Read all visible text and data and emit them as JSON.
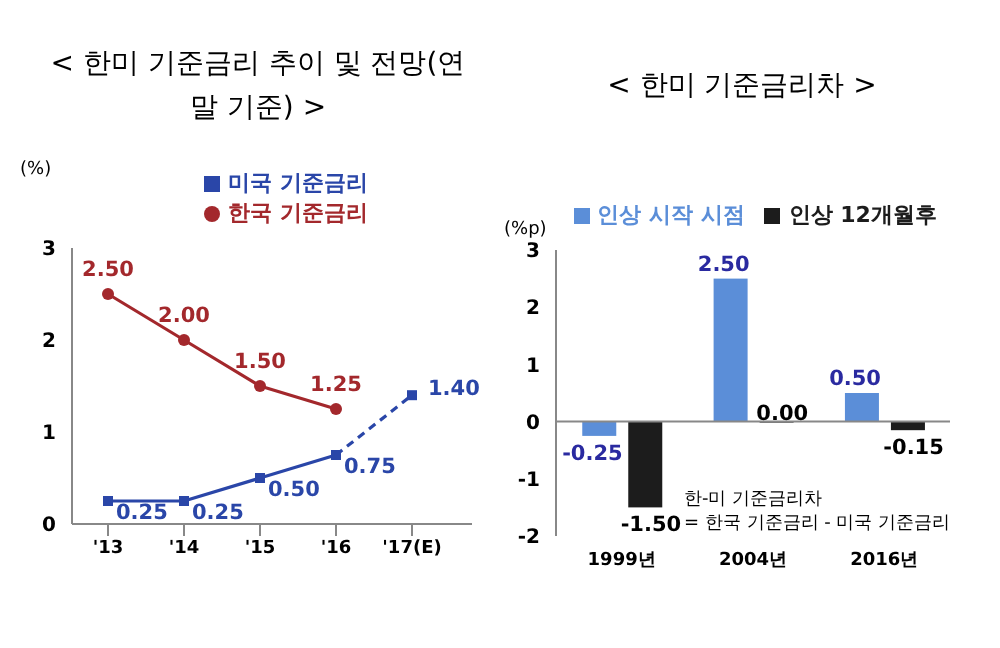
{
  "chart_data": [
    {
      "type": "line",
      "title": "<  한미 기준금리 추이 및 전망(연말 기준)  >",
      "ylabel": "(%)",
      "categories": [
        "'13",
        "'14",
        "'15",
        "'16",
        "'17(E)"
      ],
      "ylim": [
        0,
        3
      ],
      "yticks": [
        0,
        1,
        2,
        3
      ],
      "grid": false,
      "legend": "top",
      "marker": "square",
      "series": [
        {
          "name": "미국 기준금리",
          "color": "#2a46a8",
          "values": [
            0.25,
            0.25,
            0.5,
            0.75,
            null
          ],
          "value_labels": [
            "0.25",
            "0.25",
            "0.50",
            "0.75",
            null
          ],
          "line_style": "solid"
        },
        {
          "color": "#2a46a8",
          "values": [
            null,
            null,
            null,
            0.75,
            1.4
          ],
          "value_labels": [
            null,
            null,
            null,
            null,
            "1.40"
          ],
          "line_style": "dashed"
        },
        {
          "name": "한국 기준금리",
          "color": "#a3282c",
          "values": [
            2.5,
            2.0,
            1.5,
            1.25,
            null
          ],
          "value_labels": [
            "2.50",
            "2.00",
            "1.50",
            "1.25",
            null
          ],
          "marker": "circle",
          "line_style": "solid"
        }
      ]
    },
    {
      "type": "bar",
      "title": "< 한미 기준금리차 >",
      "ylabel": "(%p)",
      "categories": [
        "1999년",
        "2004년",
        "2016년"
      ],
      "ylim": [
        -2,
        3
      ],
      "yticks": [
        -2,
        -1,
        0,
        1,
        2,
        3
      ],
      "grid": false,
      "legend": "top",
      "ref_lines": [
        {
          "axis": "y",
          "value": 0,
          "color": "#888888"
        }
      ],
      "annotations": [
        "한-미 기준금리차\n= 한국 기준금리 - 미국 기준금리"
      ],
      "series": [
        {
          "name": "인상 시작 시점",
          "color": "#5b8ed8",
          "values": [
            -0.25,
            2.5,
            0.5
          ],
          "value_labels": [
            "-0.25",
            "2.50",
            "0.50"
          ]
        },
        {
          "name": "인상 12개월후",
          "color": "#1c1c1c",
          "values": [
            -1.5,
            0.0,
            -0.15
          ],
          "value_labels": [
            "-1.50",
            "0.00",
            "-0.15"
          ]
        }
      ]
    }
  ]
}
